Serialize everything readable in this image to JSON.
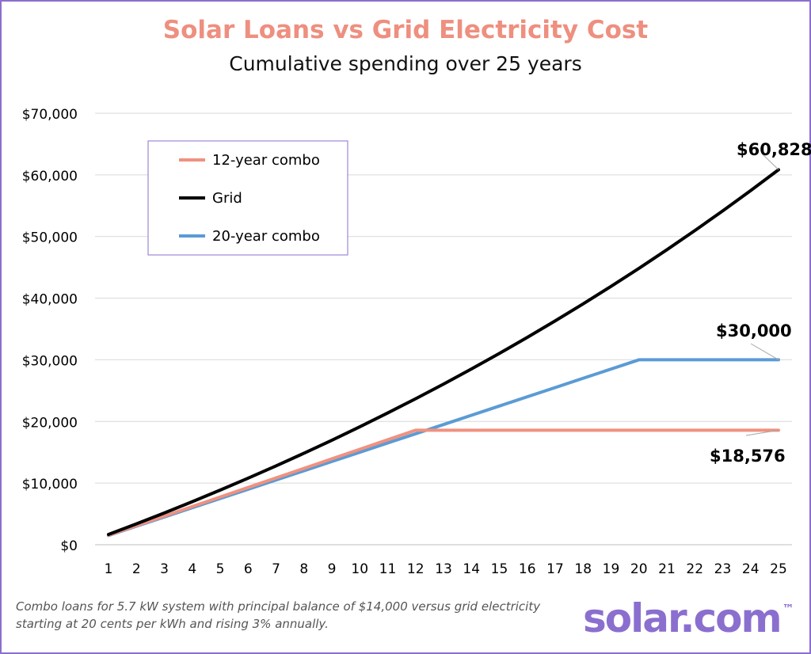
{
  "chart_data": {
    "type": "line",
    "title": "Solar Loans vs Grid Electricity Cost",
    "subtitle": "Cumulative spending over 25 years",
    "x": [
      1,
      2,
      3,
      4,
      5,
      6,
      7,
      8,
      9,
      10,
      11,
      12,
      13,
      14,
      15,
      16,
      17,
      18,
      19,
      20,
      21,
      22,
      23,
      24,
      25
    ],
    "ylim": [
      0,
      70000
    ],
    "yticks": [
      0,
      10000,
      20000,
      30000,
      40000,
      50000,
      60000,
      70000
    ],
    "ytick_labels": [
      "$0",
      "$10,000",
      "$20,000",
      "$30,000",
      "$40,000",
      "$50,000",
      "$60,000",
      "$70,000"
    ],
    "grid": "horizontal",
    "legend_position": "top-left",
    "series": [
      {
        "name": "12-year combo",
        "color": "#f0917f",
        "values": [
          1548,
          3096,
          4644,
          6192,
          7740,
          9288,
          10836,
          12384,
          13932,
          15480,
          17028,
          18576,
          18576,
          18576,
          18576,
          18576,
          18576,
          18576,
          18576,
          18576,
          18576,
          18576,
          18576,
          18576,
          18576
        ]
      },
      {
        "name": "Grid",
        "color": "#000000",
        "values": [
          1669,
          3388,
          5158,
          6982,
          8860,
          10795,
          12787,
          14840,
          16953,
          19131,
          21373,
          23683,
          26062,
          28512,
          31036,
          33635,
          36313,
          39071,
          41912,
          44838,
          47851,
          50955,
          54152,
          57444,
          60828
        ]
      },
      {
        "name": "20-year combo",
        "color": "#5b9bd5",
        "values": [
          1500,
          3000,
          4500,
          6000,
          7500,
          9000,
          10500,
          12000,
          13500,
          15000,
          16500,
          18000,
          19500,
          21000,
          22500,
          24000,
          25500,
          27000,
          28500,
          30000,
          30000,
          30000,
          30000,
          30000,
          30000
        ]
      }
    ],
    "annotations": [
      {
        "text": "$60,828",
        "series": "Grid",
        "x": 25
      },
      {
        "text": "$30,000",
        "series": "20-year combo",
        "x": 25
      },
      {
        "text": "$18,576",
        "series": "12-year combo",
        "x": 25
      }
    ]
  },
  "footnote": {
    "line1": "Combo loans for 5.7 kW system with principal balance of $14,000 versus grid electricity",
    "line2": "starting at 20 cents per kWh and rising 3% annually."
  },
  "logo": {
    "text": "solar.com",
    "mark": "™"
  }
}
